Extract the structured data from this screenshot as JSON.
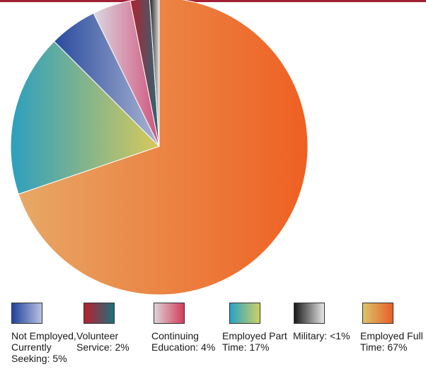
{
  "chart_data": {
    "type": "pie",
    "slices": [
      {
        "label": "Employed Full Time: 67%",
        "value": 67,
        "colors": [
          "#e8a866",
          "#ee6022"
        ],
        "legend_colors": [
          "#dcc46c",
          "#e85e26"
        ]
      },
      {
        "label": "Employed Part Time: 17%",
        "value": 17,
        "colors": [
          "#2b9fbf",
          "#d8c95a"
        ],
        "legend_colors": [
          "#27a3c8",
          "#cdd162"
        ]
      },
      {
        "label": "Not Employed, Currently Seeking: 5%",
        "value": 5,
        "colors": [
          "#2a4a9e",
          "#aab5d3"
        ],
        "legend_colors": [
          "#21439c",
          "#b8c2e0"
        ]
      },
      {
        "label": "Continuing Education: 4%",
        "value": 4,
        "colors": [
          "#d9d9e0",
          "#d2527c"
        ],
        "legend_colors": [
          "#ddd3d7",
          "#d23d5c"
        ]
      },
      {
        "label": "Volunteer Service: 2%",
        "value": 2,
        "colors": [
          "#b4202e",
          "#256a78"
        ],
        "legend_colors": [
          "#b82030",
          "#1f6f7a"
        ]
      },
      {
        "label": "Military: <1%",
        "value": 1,
        "colors": [
          "#1c1c1c",
          "#dcdcdc"
        ],
        "legend_colors": [
          "#1a1a1a",
          "#e6e6e6"
        ]
      }
    ]
  },
  "legend": [
    {
      "label": "Not Employed, Currently Seeking: 5%",
      "colors": [
        "#21439c",
        "#b8c2e0"
      ]
    },
    {
      "label": "Volunteer Service: 2%",
      "colors": [
        "#b82030",
        "#1f6f7a"
      ]
    },
    {
      "label": "Continuing Education: 4%",
      "colors": [
        "#ddd3d7",
        "#d23d5c"
      ]
    },
    {
      "label": "Employed Part Time: 17%",
      "colors": [
        "#27a3c8",
        "#cdd162"
      ]
    },
    {
      "label": "Military: <1%",
      "colors": [
        "#1a1a1a",
        "#e6e6e6"
      ]
    },
    {
      "label": "Employed Full Time: 67%",
      "colors": [
        "#dcc46c",
        "#e85e26"
      ]
    }
  ]
}
